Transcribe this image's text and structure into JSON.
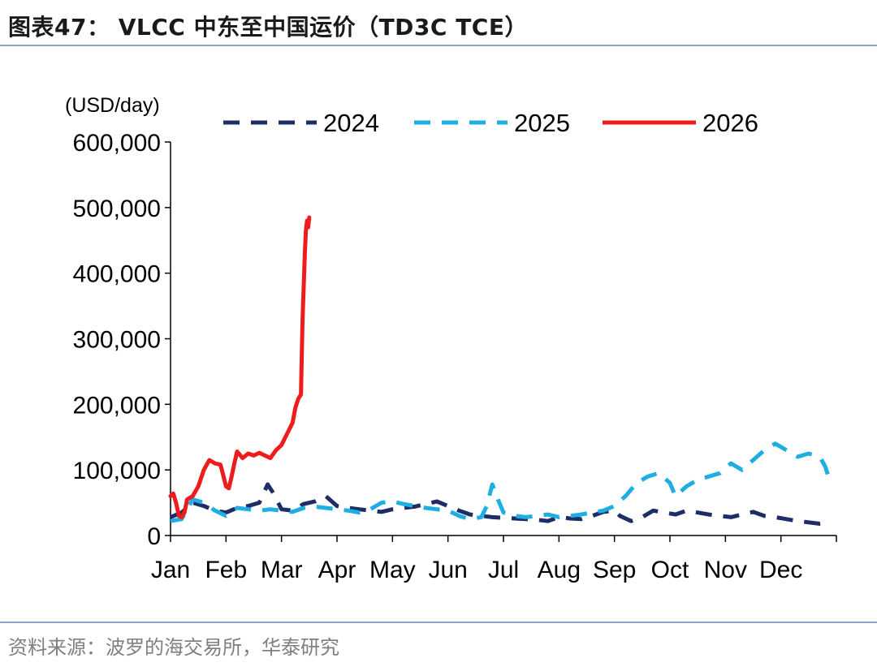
{
  "title": "图表47：  VLCC 中东至中国运价（TD3C TCE）",
  "source": "资料来源：波罗的海交易所，华泰研究",
  "colors": {
    "s2024": "#1f2d66",
    "s2025": "#1faee3",
    "s2026": "#ee1c1c",
    "rule": "#8aa4c8"
  },
  "chart_data": {
    "type": "line",
    "unit_label": "(USD/day)",
    "x_tick_labels": [
      "Jan",
      "Feb",
      "Mar",
      "Apr",
      "May",
      "Jun",
      "Jul",
      "Aug",
      "Sep",
      "Oct",
      "Nov",
      "Dec"
    ],
    "x_range": [
      0,
      12
    ],
    "ylim": [
      0,
      600000
    ],
    "y_ticks": [
      0,
      100000,
      200000,
      300000,
      400000,
      500000,
      600000
    ],
    "y_tick_labels": [
      "0",
      "100,000",
      "200,000",
      "300,000",
      "400,000",
      "500,000",
      "600,000"
    ],
    "legend_position": "top",
    "series": [
      {
        "name": "2024",
        "style": "dashed",
        "color": "#1f2d66",
        "points": [
          [
            0,
            28000
          ],
          [
            0.2,
            35000
          ],
          [
            0.4,
            50000
          ],
          [
            0.6,
            45000
          ],
          [
            0.8,
            38000
          ],
          [
            1.0,
            35000
          ],
          [
            1.2,
            42000
          ],
          [
            1.4,
            45000
          ],
          [
            1.6,
            50000
          ],
          [
            1.75,
            78000
          ],
          [
            1.85,
            65000
          ],
          [
            2.0,
            40000
          ],
          [
            2.2,
            38000
          ],
          [
            2.4,
            48000
          ],
          [
            2.6,
            52000
          ],
          [
            2.8,
            60000
          ],
          [
            3.0,
            45000
          ],
          [
            3.2,
            42000
          ],
          [
            3.4,
            40000
          ],
          [
            3.6,
            38000
          ],
          [
            3.8,
            36000
          ],
          [
            4.0,
            40000
          ],
          [
            4.2,
            42000
          ],
          [
            4.4,
            44000
          ],
          [
            4.6,
            48000
          ],
          [
            4.8,
            52000
          ],
          [
            5.0,
            45000
          ],
          [
            5.2,
            38000
          ],
          [
            5.4,
            32000
          ],
          [
            5.6,
            30000
          ],
          [
            5.8,
            28000
          ],
          [
            6.0,
            27000
          ],
          [
            6.2,
            26000
          ],
          [
            6.4,
            25000
          ],
          [
            6.6,
            24000
          ],
          [
            6.8,
            22000
          ],
          [
            7.0,
            28000
          ],
          [
            7.2,
            26000
          ],
          [
            7.4,
            25000
          ],
          [
            7.6,
            30000
          ],
          [
            7.8,
            36000
          ],
          [
            8.0,
            38000
          ],
          [
            8.1,
            30000
          ],
          [
            8.3,
            22000
          ],
          [
            8.5,
            28000
          ],
          [
            8.7,
            38000
          ],
          [
            8.9,
            35000
          ],
          [
            9.1,
            32000
          ],
          [
            9.3,
            38000
          ],
          [
            9.5,
            35000
          ],
          [
            9.7,
            32000
          ],
          [
            9.9,
            30000
          ],
          [
            10.1,
            28000
          ],
          [
            10.3,
            32000
          ],
          [
            10.5,
            36000
          ],
          [
            10.7,
            30000
          ],
          [
            10.9,
            28000
          ],
          [
            11.1,
            25000
          ],
          [
            11.3,
            22000
          ],
          [
            11.5,
            20000
          ],
          [
            11.7,
            18000
          ],
          [
            11.9,
            20000
          ]
        ]
      },
      {
        "name": "2025",
        "style": "dashed",
        "color": "#1faee3",
        "points": [
          [
            0,
            22000
          ],
          [
            0.2,
            25000
          ],
          [
            0.4,
            55000
          ],
          [
            0.6,
            50000
          ],
          [
            0.8,
            38000
          ],
          [
            1.0,
            30000
          ],
          [
            1.2,
            42000
          ],
          [
            1.4,
            40000
          ],
          [
            1.6,
            38000
          ],
          [
            1.8,
            40000
          ],
          [
            2.0,
            38000
          ],
          [
            2.2,
            36000
          ],
          [
            2.4,
            42000
          ],
          [
            2.6,
            44000
          ],
          [
            2.8,
            42000
          ],
          [
            3.0,
            40000
          ],
          [
            3.2,
            38000
          ],
          [
            3.4,
            35000
          ],
          [
            3.6,
            40000
          ],
          [
            3.8,
            50000
          ],
          [
            4.0,
            52000
          ],
          [
            4.2,
            48000
          ],
          [
            4.4,
            45000
          ],
          [
            4.6,
            42000
          ],
          [
            4.8,
            40000
          ],
          [
            5.0,
            38000
          ],
          [
            5.2,
            30000
          ],
          [
            5.4,
            25000
          ],
          [
            5.6,
            28000
          ],
          [
            5.7,
            45000
          ],
          [
            5.8,
            78000
          ],
          [
            5.9,
            55000
          ],
          [
            6.0,
            35000
          ],
          [
            6.2,
            30000
          ],
          [
            6.4,
            28000
          ],
          [
            6.6,
            30000
          ],
          [
            6.8,
            32000
          ],
          [
            7.0,
            28000
          ],
          [
            7.2,
            30000
          ],
          [
            7.4,
            32000
          ],
          [
            7.6,
            35000
          ],
          [
            7.8,
            38000
          ],
          [
            8.0,
            45000
          ],
          [
            8.2,
            60000
          ],
          [
            8.4,
            80000
          ],
          [
            8.6,
            90000
          ],
          [
            8.8,
            95000
          ],
          [
            9.0,
            80000
          ],
          [
            9.1,
            60000
          ],
          [
            9.3,
            75000
          ],
          [
            9.5,
            85000
          ],
          [
            9.7,
            90000
          ],
          [
            9.9,
            95000
          ],
          [
            10.1,
            110000
          ],
          [
            10.3,
            100000
          ],
          [
            10.5,
            115000
          ],
          [
            10.7,
            130000
          ],
          [
            10.9,
            140000
          ],
          [
            11.1,
            130000
          ],
          [
            11.3,
            120000
          ],
          [
            11.5,
            125000
          ],
          [
            11.7,
            120000
          ],
          [
            11.8,
            105000
          ],
          [
            11.9,
            78000
          ]
        ]
      },
      {
        "name": "2026",
        "style": "solid",
        "color": "#ee1c1c",
        "points": [
          [
            0,
            60000
          ],
          [
            0.05,
            64000
          ],
          [
            0.1,
            50000
          ],
          [
            0.15,
            30000
          ],
          [
            0.2,
            28000
          ],
          [
            0.25,
            35000
          ],
          [
            0.3,
            55000
          ],
          [
            0.4,
            60000
          ],
          [
            0.5,
            75000
          ],
          [
            0.6,
            100000
          ],
          [
            0.7,
            115000
          ],
          [
            0.8,
            110000
          ],
          [
            0.9,
            108000
          ],
          [
            0.95,
            92000
          ],
          [
            1.0,
            75000
          ],
          [
            1.05,
            72000
          ],
          [
            1.1,
            90000
          ],
          [
            1.15,
            110000
          ],
          [
            1.2,
            128000
          ],
          [
            1.3,
            118000
          ],
          [
            1.4,
            125000
          ],
          [
            1.5,
            122000
          ],
          [
            1.6,
            126000
          ],
          [
            1.7,
            122000
          ],
          [
            1.8,
            118000
          ],
          [
            1.9,
            130000
          ],
          [
            2.0,
            138000
          ],
          [
            2.1,
            155000
          ],
          [
            2.2,
            172000
          ],
          [
            2.25,
            195000
          ],
          [
            2.3,
            208000
          ],
          [
            2.35,
            215000
          ],
          [
            2.38,
            330000
          ],
          [
            2.42,
            430000
          ],
          [
            2.44,
            465000
          ],
          [
            2.46,
            480000
          ],
          [
            2.48,
            470000
          ],
          [
            2.5,
            485000
          ]
        ]
      }
    ]
  }
}
